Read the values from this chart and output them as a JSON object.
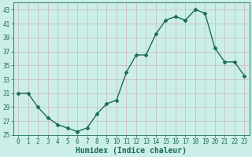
{
  "x": [
    0,
    1,
    2,
    3,
    4,
    5,
    6,
    7,
    8,
    9,
    10,
    11,
    12,
    13,
    14,
    15,
    16,
    17,
    18,
    19,
    20,
    21,
    22,
    23
  ],
  "y": [
    31,
    31,
    29,
    27.5,
    26.5,
    26,
    25.5,
    26,
    28,
    29.5,
    30,
    34,
    36.5,
    36.5,
    39.5,
    41.5,
    42,
    41.5,
    43,
    42.5,
    37.5,
    35.5,
    35.5,
    33.5
  ],
  "line_color": "#1a6b5a",
  "marker": "D",
  "marker_size": 2.5,
  "bg_color": "#cceee8",
  "grid_color": "#c8b8b8",
  "xlabel": "Humidex (Indice chaleur)",
  "xlim": [
    -0.5,
    23.5
  ],
  "ylim": [
    25,
    44
  ],
  "yticks": [
    25,
    27,
    29,
    31,
    33,
    35,
    37,
    39,
    41,
    43
  ],
  "xticks": [
    0,
    1,
    2,
    3,
    4,
    5,
    6,
    7,
    8,
    9,
    10,
    11,
    12,
    13,
    14,
    15,
    16,
    17,
    18,
    19,
    20,
    21,
    22,
    23
  ],
  "tick_fontsize": 5.5,
  "xlabel_fontsize": 7,
  "linewidth": 1.0
}
